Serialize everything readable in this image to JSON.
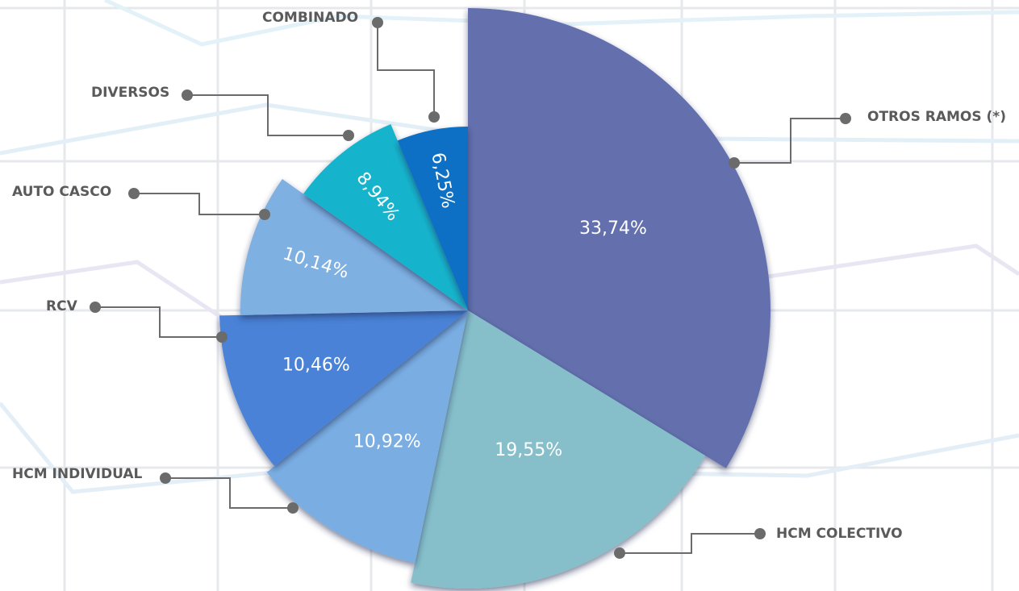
{
  "chart_data": {
    "type": "pie",
    "categories": [
      "OTROS RAMOS (*)",
      "HCM COLECTIVO",
      "HCM INDIVIDUAL",
      "RCV",
      "AUTO CASCO",
      "DIVERSOS",
      "COMBINADO"
    ],
    "values": [
      33.74,
      19.55,
      10.92,
      10.46,
      10.14,
      8.94,
      6.25
    ],
    "value_labels": [
      "33,74%",
      "19,55%",
      "10,92%",
      "10,46%",
      "10,14%",
      "8,94%",
      "6,25%"
    ],
    "colors": [
      "#6470ad",
      "#86bfca",
      "#7aaee3",
      "#4a82d6",
      "#7fb0e2",
      "#14b4cc",
      "#0a6fc4"
    ]
  }
}
